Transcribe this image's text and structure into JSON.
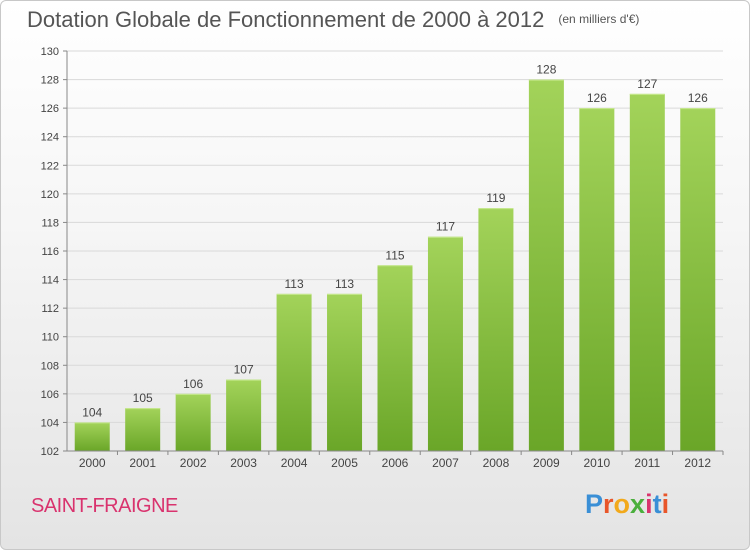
{
  "title": "Dotation Globale de Fonctionnement de 2000 à 2012",
  "unit_note": "(en milliers d'€)",
  "commune": "SAINT-FRAIGNE",
  "logo": {
    "text": "Proxiti",
    "letter_colors": [
      "#3a8fd6",
      "#e8562a",
      "#f2a91b",
      "#4aaf3c",
      "#d9336e",
      "#3a8fd6",
      "#e8562a"
    ]
  },
  "colors": {
    "bar_top": "#a3d35a",
    "bar_bottom": "#6aa628",
    "grid": "#d9d9d9",
    "axis": "#888888",
    "label": "#444444"
  },
  "chart_data": {
    "type": "bar",
    "categories": [
      "2000",
      "2001",
      "2002",
      "2003",
      "2004",
      "2005",
      "2006",
      "2007",
      "2008",
      "2009",
      "2010",
      "2011",
      "2012"
    ],
    "values": [
      104,
      105,
      106,
      107,
      113,
      113,
      115,
      117,
      119,
      128,
      126,
      127,
      126
    ],
    "data_labels": [
      "104",
      "105",
      "106",
      "107",
      "113",
      "113",
      "115",
      "117",
      "119",
      "128",
      "126",
      "127",
      "126"
    ],
    "yticks": [
      "102",
      "104",
      "106",
      "108",
      "110",
      "112",
      "114",
      "116",
      "118",
      "120",
      "122",
      "124",
      "126",
      "128",
      "130"
    ],
    "ylim": [
      102,
      130
    ],
    "grid": true,
    "legend": "none"
  }
}
